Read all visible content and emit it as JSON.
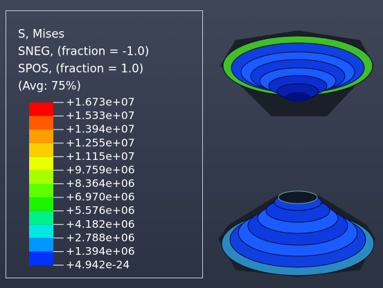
{
  "legend": {
    "lines": [
      "S, Mises",
      "SNEG, (fraction = -1.0)",
      "SPOS, (fraction = 1.0)",
      "(Avg: 75%)"
    ],
    "labels": [
      "+1.673e+07",
      "+1.533e+07",
      "+1.394e+07",
      "+1.255e+07",
      "+1.115e+07",
      "+9.759e+06",
      "+8.364e+06",
      "+6.970e+06",
      "+5.576e+06",
      "+4.182e+06",
      "+2.788e+06",
      "+1.394e+06",
      "+4.942e-24"
    ],
    "colors": [
      "#ff0000",
      "#ff5a00",
      "#ff9e00",
      "#ffcc00",
      "#e8ff00",
      "#a6ff00",
      "#5cff00",
      "#1cf400",
      "#00f08a",
      "#00e8e0",
      "#0096ff",
      "#0033ff"
    ]
  }
}
